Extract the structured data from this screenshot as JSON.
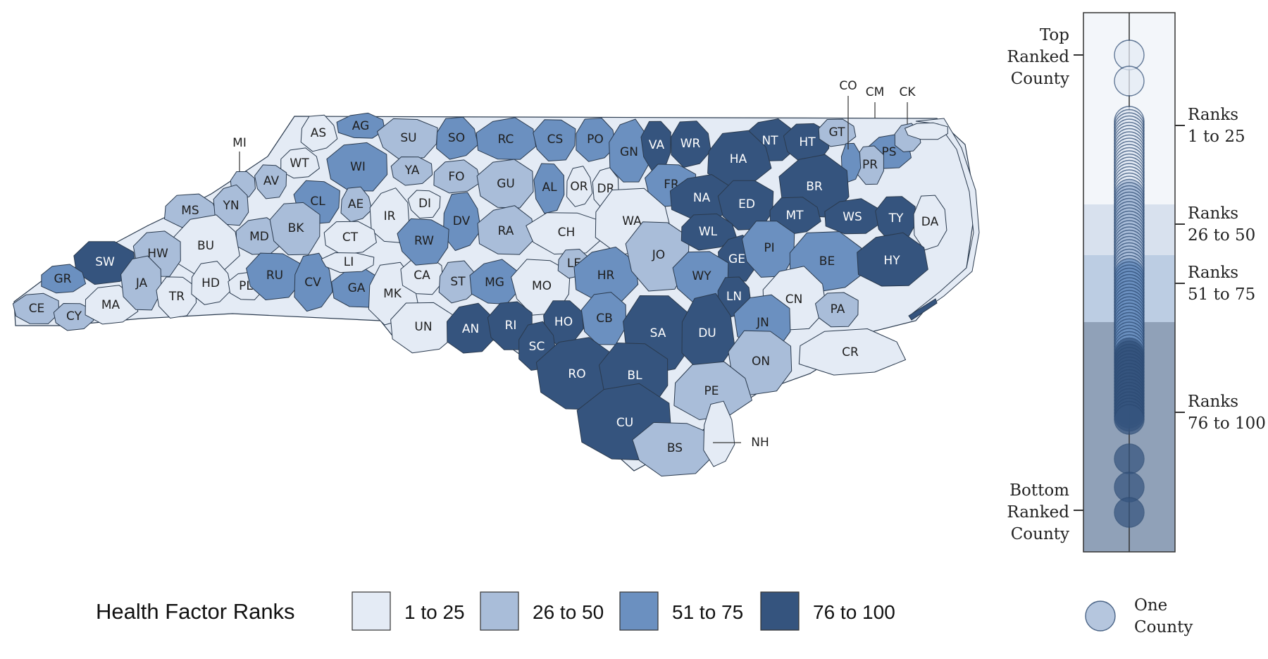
{
  "colors": {
    "1 to 25": "#e4ebf5",
    "26 to 50": "#a9bdd9",
    "51 to 75": "#6b90c0",
    "76 to 100": "#35547e",
    "border": "#2a3a4e",
    "background": "#ffffff"
  },
  "counties": [
    {
      "abbr": "AS",
      "cat": "1 to 25"
    },
    {
      "abbr": "AG",
      "cat": "51 to 75"
    },
    {
      "abbr": "SU",
      "cat": "26 to 50"
    },
    {
      "abbr": "SO",
      "cat": "51 to 75"
    },
    {
      "abbr": "RC",
      "cat": "51 to 75"
    },
    {
      "abbr": "CS",
      "cat": "51 to 75"
    },
    {
      "abbr": "PO",
      "cat": "51 to 75"
    },
    {
      "abbr": "GN",
      "cat": "51 to 75"
    },
    {
      "abbr": "VA",
      "cat": "76 to 100"
    },
    {
      "abbr": "WR",
      "cat": "76 to 100"
    },
    {
      "abbr": "NT",
      "cat": "76 to 100"
    },
    {
      "abbr": "HT",
      "cat": "76 to 100"
    },
    {
      "abbr": "GT",
      "cat": "26 to 50"
    },
    {
      "abbr": "PS",
      "cat": "51 to 75"
    },
    {
      "abbr": "PR",
      "cat": "26 to 50"
    },
    {
      "abbr": "CO",
      "cat": "51 to 75"
    },
    {
      "abbr": "CM",
      "cat": "26 to 50"
    },
    {
      "abbr": "CK",
      "cat": "1 to 25"
    },
    {
      "abbr": "MI",
      "cat": "26 to 50"
    },
    {
      "abbr": "WT",
      "cat": "1 to 25"
    },
    {
      "abbr": "WI",
      "cat": "51 to 75"
    },
    {
      "abbr": "YA",
      "cat": "26 to 50"
    },
    {
      "abbr": "FO",
      "cat": "26 to 50"
    },
    {
      "abbr": "GU",
      "cat": "26 to 50"
    },
    {
      "abbr": "AL",
      "cat": "51 to 75"
    },
    {
      "abbr": "OR",
      "cat": "1 to 25"
    },
    {
      "abbr": "DR",
      "cat": "1 to 25"
    },
    {
      "abbr": "FR",
      "cat": "51 to 75"
    },
    {
      "abbr": "HA",
      "cat": "76 to 100"
    },
    {
      "abbr": "BR",
      "cat": "76 to 100"
    },
    {
      "abbr": "AV",
      "cat": "26 to 50"
    },
    {
      "abbr": "MS",
      "cat": "26 to 50"
    },
    {
      "abbr": "YN",
      "cat": "26 to 50"
    },
    {
      "abbr": "CL",
      "cat": "51 to 75"
    },
    {
      "abbr": "AE",
      "cat": "26 to 50"
    },
    {
      "abbr": "IR",
      "cat": "1 to 25"
    },
    {
      "abbr": "DI",
      "cat": "1 to 25"
    },
    {
      "abbr": "DV",
      "cat": "51 to 75"
    },
    {
      "abbr": "RA",
      "cat": "26 to 50"
    },
    {
      "abbr": "CH",
      "cat": "1 to 25"
    },
    {
      "abbr": "WA",
      "cat": "1 to 25"
    },
    {
      "abbr": "NA",
      "cat": "76 to 100"
    },
    {
      "abbr": "ED",
      "cat": "76 to 100"
    },
    {
      "abbr": "MT",
      "cat": "76 to 100"
    },
    {
      "abbr": "WS",
      "cat": "76 to 100"
    },
    {
      "abbr": "TY",
      "cat": "76 to 100"
    },
    {
      "abbr": "DA",
      "cat": "1 to 25"
    },
    {
      "abbr": "MD",
      "cat": "26 to 50"
    },
    {
      "abbr": "BK",
      "cat": "26 to 50"
    },
    {
      "abbr": "CT",
      "cat": "1 to 25"
    },
    {
      "abbr": "BU",
      "cat": "1 to 25"
    },
    {
      "abbr": "HW",
      "cat": "26 to 50"
    },
    {
      "abbr": "SW",
      "cat": "76 to 100"
    },
    {
      "abbr": "GR",
      "cat": "51 to 75"
    },
    {
      "abbr": "CE",
      "cat": "26 to 50"
    },
    {
      "abbr": "CY",
      "cat": "26 to 50"
    },
    {
      "abbr": "MA",
      "cat": "1 to 25"
    },
    {
      "abbr": "JA",
      "cat": "26 to 50"
    },
    {
      "abbr": "TR",
      "cat": "1 to 25"
    },
    {
      "abbr": "HD",
      "cat": "1 to 25"
    },
    {
      "abbr": "PL",
      "cat": "1 to 25"
    },
    {
      "abbr": "RU",
      "cat": "51 to 75"
    },
    {
      "abbr": "CV",
      "cat": "51 to 75"
    },
    {
      "abbr": "GA",
      "cat": "51 to 75"
    },
    {
      "abbr": "LI",
      "cat": "1 to 25"
    },
    {
      "abbr": "MK",
      "cat": "1 to 25"
    },
    {
      "abbr": "CA",
      "cat": "1 to 25"
    },
    {
      "abbr": "RW",
      "cat": "51 to 75"
    },
    {
      "abbr": "ST",
      "cat": "26 to 50"
    },
    {
      "abbr": "MG",
      "cat": "51 to 75"
    },
    {
      "abbr": "MO",
      "cat": "1 to 25"
    },
    {
      "abbr": "LE",
      "cat": "26 to 50"
    },
    {
      "abbr": "HR",
      "cat": "51 to 75"
    },
    {
      "abbr": "JO",
      "cat": "26 to 50"
    },
    {
      "abbr": "WL",
      "cat": "76 to 100"
    },
    {
      "abbr": "GE",
      "cat": "76 to 100"
    },
    {
      "abbr": "PI",
      "cat": "51 to 75"
    },
    {
      "abbr": "BE",
      "cat": "51 to 75"
    },
    {
      "abbr": "HY",
      "cat": "76 to 100"
    },
    {
      "abbr": "WY",
      "cat": "51 to 75"
    },
    {
      "abbr": "LN",
      "cat": "76 to 100"
    },
    {
      "abbr": "CN",
      "cat": "1 to 25"
    },
    {
      "abbr": "PA",
      "cat": "26 to 50"
    },
    {
      "abbr": "UN",
      "cat": "1 to 25"
    },
    {
      "abbr": "AN",
      "cat": "76 to 100"
    },
    {
      "abbr": "RI",
      "cat": "76 to 100"
    },
    {
      "abbr": "HO",
      "cat": "76 to 100"
    },
    {
      "abbr": "SC",
      "cat": "76 to 100"
    },
    {
      "abbr": "CB",
      "cat": "51 to 75"
    },
    {
      "abbr": "SA",
      "cat": "76 to 100"
    },
    {
      "abbr": "DU",
      "cat": "76 to 100"
    },
    {
      "abbr": "JN",
      "cat": "51 to 75"
    },
    {
      "abbr": "ON",
      "cat": "26 to 50"
    },
    {
      "abbr": "CR",
      "cat": "1 to 25"
    },
    {
      "abbr": "RO",
      "cat": "76 to 100"
    },
    {
      "abbr": "BL",
      "cat": "76 to 100"
    },
    {
      "abbr": "PE",
      "cat": "26 to 50"
    },
    {
      "abbr": "CU",
      "cat": "76 to 100"
    },
    {
      "abbr": "BS",
      "cat": "26 to 50"
    },
    {
      "abbr": "NH",
      "cat": "1 to 25"
    }
  ],
  "legend": {
    "title": "Health Factor Ranks",
    "items": [
      "1 to 25",
      "26 to 50",
      "51 to 75",
      "76 to 100"
    ]
  },
  "rank_strip": {
    "top_label": [
      "Top",
      "Ranked",
      "County"
    ],
    "bottom_label": [
      "Bottom",
      "Ranked",
      "County"
    ],
    "bands": [
      {
        "label": [
          "Ranks",
          "1 to 25"
        ],
        "cat": "1 to 25"
      },
      {
        "label": [
          "Ranks",
          "26 to 50"
        ],
        "cat": "26 to 50"
      },
      {
        "label": [
          "Ranks",
          "51 to 75"
        ],
        "cat": "51 to 75"
      },
      {
        "label": [
          "Ranks",
          "76 to 100"
        ],
        "cat": "76 to 100"
      }
    ],
    "dot_legend": [
      "One",
      "County"
    ]
  }
}
